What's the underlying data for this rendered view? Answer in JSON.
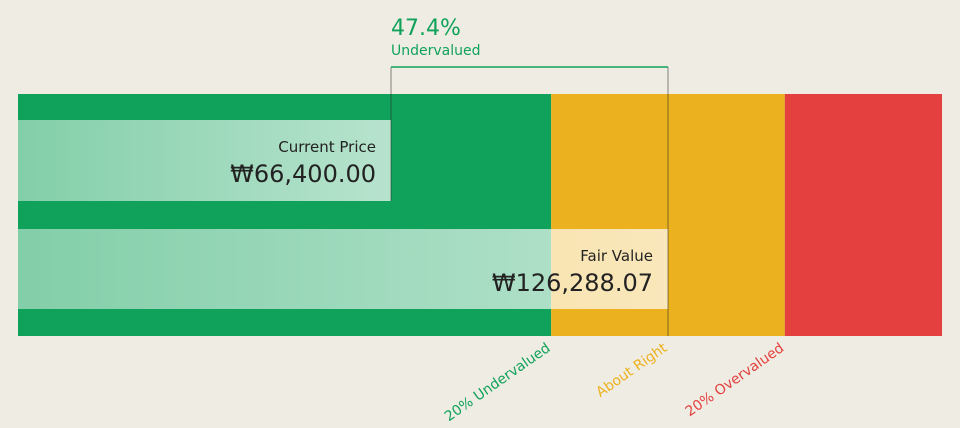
{
  "chart_data": {
    "type": "valuation",
    "xlim": [
      -14250,
      185530
    ],
    "zones": [
      {
        "from": -14250,
        "to": 101030,
        "color": "#10a25a"
      },
      {
        "from": 101030,
        "to": 151546,
        "color": "#ecb11e"
      },
      {
        "from": 151546,
        "to": 185530,
        "color": "#e4403f"
      }
    ],
    "zone_labels": [
      {
        "label": "20% Undervalued",
        "value": 101030,
        "color": "#10a25a"
      },
      {
        "label": "About Right",
        "value": 126288.07,
        "color": "#ecb11e"
      },
      {
        "label": "20% Overvalued",
        "value": 151546,
        "color": "#e4403f"
      }
    ],
    "bars": [
      {
        "name": "Current Price",
        "value": 66400,
        "value_label": "₩66,400.00"
      },
      {
        "name": "Fair Value",
        "value": 126288.07,
        "value_label": "₩126,288.07"
      }
    ],
    "discount": {
      "value": 47.4,
      "label": "47.4%",
      "status": "Undervalued",
      "color": "#10a25a"
    }
  }
}
